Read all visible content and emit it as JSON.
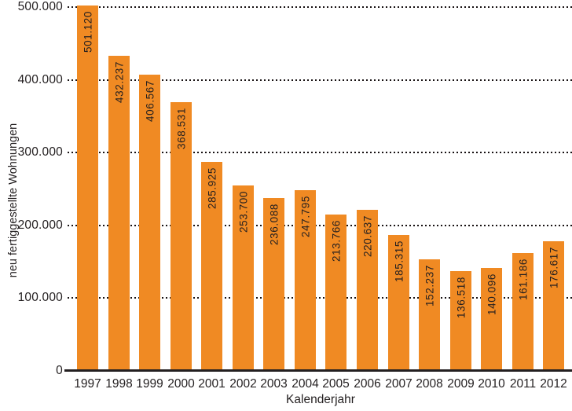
{
  "chart_data": {
    "type": "bar",
    "title": "",
    "xlabel": "Kalenderjahr",
    "ylabel": "neu fertiggestellte Wohnungen",
    "categories": [
      "1997",
      "1998",
      "1999",
      "2000",
      "2001",
      "2002",
      "2003",
      "2004",
      "2005",
      "2006",
      "2007",
      "2008",
      "2009",
      "2010",
      "2011",
      "2012"
    ],
    "values": [
      501120,
      432237,
      406567,
      368531,
      285925,
      253700,
      236088,
      247795,
      213766,
      220637,
      185315,
      152237,
      136518,
      140096,
      161186,
      176617
    ],
    "value_labels": [
      "501.120",
      "432.237",
      "406.567",
      "368.531",
      "285.925",
      "253.700",
      "236.088",
      "247.795",
      "213.766",
      "220.637",
      "185.315",
      "152.237",
      "136.518",
      "140.096",
      "161.186",
      "176.617"
    ],
    "ylim": [
      0,
      500000
    ],
    "ytick_values": [
      0,
      100000,
      200000,
      300000,
      400000,
      500000
    ],
    "ytick_labels": [
      "0",
      "100.000",
      "200.000",
      "300.000",
      "400.000",
      "500.000"
    ],
    "grid": "horizontal-dotted",
    "legend": "none",
    "bar_color": "#F08A23",
    "text_color": "#231F20"
  }
}
